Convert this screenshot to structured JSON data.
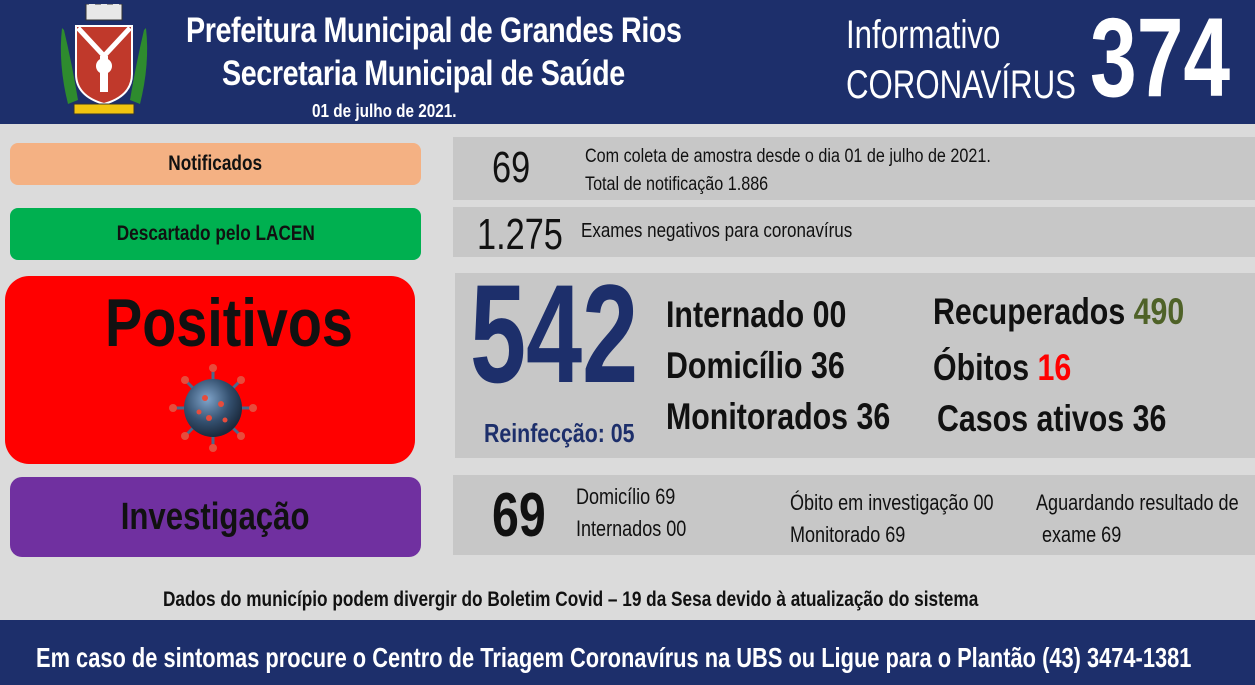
{
  "header": {
    "title_line1": "Prefeitura Municipal de Grandes Rios",
    "title_line2": "Secretaria Municipal de Saúde",
    "date": "01 de julho de 2021.",
    "info_line1": "Informativo",
    "info_line2": "CORONAVÍRUS",
    "bulletin_number": "374",
    "crest_icon": "municipal-coat-of-arms-icon"
  },
  "notificados": {
    "label": "Notificados",
    "value": "69",
    "note_line1": "Com coleta de amostra desde o dia 01 de julho de 2021.",
    "note_line2": "Total de notificação 1.886",
    "color": "#f4b183"
  },
  "descartado": {
    "label": "Descartado pelo LACEN",
    "value": "1.275",
    "note": "Exames negativos para coronavírus",
    "color": "#00b050"
  },
  "positivos": {
    "label": "Positivos",
    "value": "542",
    "reinfeccao": "Reinfecção: 05",
    "internado_label": "Internado",
    "internado_value": "00",
    "domicilio_label": "Domicílio",
    "domicilio_value": "36",
    "monitorados_label": "Monitorados",
    "monitorados_value": "36",
    "recuperados_label": "Recuperados",
    "recuperados_value": "490",
    "obitos_label": "Óbitos",
    "obitos_value": "16",
    "casos_ativos_label": "Casos ativos",
    "casos_ativos_value": "36",
    "color": "#ff0000",
    "virus_icon": "coronavirus-icon"
  },
  "investigacao": {
    "label": "Investigação",
    "value": "69",
    "domicilio": "Domicílio 69",
    "internados": "Internados 00",
    "obito_investigacao": "Óbito em investigação 00",
    "monitorado": "Monitorado 69",
    "aguardando_line1": "Aguardando resultado de",
    "aguardando_line2": "exame 69",
    "color": "#7030a0"
  },
  "disclaimer": "Dados do município podem divergir do Boletim Covid – 19 da Sesa devido à atualização do sistema",
  "footer": "Em caso de sintomas procure o Centro de Triagem Coronavírus na UBS ou Ligue para o Plantão (43) 3474-1381"
}
